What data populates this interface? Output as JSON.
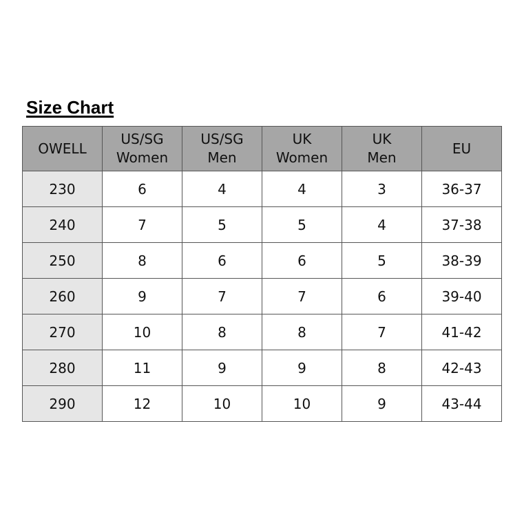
{
  "title": "Size Chart",
  "colors": {
    "header_bg": "#a6a6a6",
    "first_col_bg": "#e6e6e6",
    "border": "#555555"
  },
  "headers": [
    [
      "OWELL"
    ],
    [
      "US/SG",
      "Women"
    ],
    [
      "US/SG",
      "Men"
    ],
    [
      "UK",
      "Women"
    ],
    [
      "UK",
      "Men"
    ],
    [
      "EU"
    ]
  ],
  "rows": [
    [
      "230",
      "6",
      "4",
      "4",
      "3",
      "36-37"
    ],
    [
      "240",
      "7",
      "5",
      "5",
      "4",
      "37-38"
    ],
    [
      "250",
      "8",
      "6",
      "6",
      "5",
      "38-39"
    ],
    [
      "260",
      "9",
      "7",
      "7",
      "6",
      "39-40"
    ],
    [
      "270",
      "10",
      "8",
      "8",
      "7",
      "41-42"
    ],
    [
      "280",
      "11",
      "9",
      "9",
      "8",
      "42-43"
    ],
    [
      "290",
      "12",
      "10",
      "10",
      "9",
      "43-44"
    ]
  ]
}
